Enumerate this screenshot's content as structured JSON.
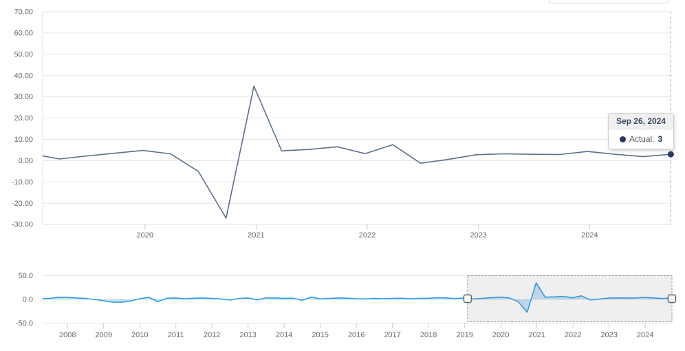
{
  "colors": {
    "background": "#ffffff",
    "grid": "#e6e6e6",
    "axis_line": "#e0e0e0",
    "tick": "#c8c8c8",
    "axis_label": "#666666",
    "main_line": "#5a6e91",
    "marker": "#26395f",
    "crosshair": "#b0b0b0",
    "nav_line": "#2f9ce8",
    "nav_fill": "rgba(47,156,232,0.28)",
    "selection_fill": "rgba(130,130,130,0.13)",
    "selection_border": "#999999",
    "handle_fill": "#f8f8f8",
    "handle_border": "#666666"
  },
  "tooltip": {
    "date": "Sep 26, 2024",
    "series_label": "Actual:",
    "value": "3",
    "marker_color": "#26395f"
  },
  "chart_data": [
    {
      "id": "main",
      "type": "line",
      "title": "",
      "x_axis": {
        "range": [
          2019.08,
          2024.74
        ],
        "ticks": [
          {
            "v": 2020,
            "label": "2020"
          },
          {
            "v": 2021,
            "label": "2021"
          },
          {
            "v": 2022,
            "label": "2022"
          },
          {
            "v": 2023,
            "label": "2023"
          },
          {
            "v": 2024,
            "label": "2024"
          }
        ]
      },
      "y_axis": {
        "range": [
          -30,
          70
        ],
        "ticks": [
          {
            "v": 70,
            "label": "70.00"
          },
          {
            "v": 60,
            "label": "60.00"
          },
          {
            "v": 50,
            "label": "50.00"
          },
          {
            "v": 40,
            "label": "40.00"
          },
          {
            "v": 30,
            "label": "30.00"
          },
          {
            "v": 20,
            "label": "20.00"
          },
          {
            "v": 10,
            "label": "10.00"
          },
          {
            "v": 0,
            "label": "0.00"
          },
          {
            "v": -10,
            "label": "-10.00"
          },
          {
            "v": -20,
            "label": "-20.00"
          },
          {
            "v": -30,
            "label": "-30.00"
          }
        ]
      },
      "series": [
        {
          "name": "Actual",
          "points": [
            [
              2018.98,
              3.2
            ],
            [
              2019.23,
              0.8
            ],
            [
              2019.48,
              2.2
            ],
            [
              2019.73,
              3.5
            ],
            [
              2019.98,
              4.8
            ],
            [
              2020.23,
              3.2
            ],
            [
              2020.48,
              -5.0
            ],
            [
              2020.73,
              -27.0
            ],
            [
              2020.98,
              35.0
            ],
            [
              2021.23,
              4.6
            ],
            [
              2021.48,
              5.3
            ],
            [
              2021.73,
              6.5
            ],
            [
              2021.98,
              3.3
            ],
            [
              2022.23,
              7.5
            ],
            [
              2022.48,
              -1.2
            ],
            [
              2022.73,
              0.6
            ],
            [
              2022.98,
              2.8
            ],
            [
              2023.23,
              3.2
            ],
            [
              2023.48,
              3.0
            ],
            [
              2023.73,
              2.9
            ],
            [
              2023.98,
              4.3
            ],
            [
              2024.23,
              3.0
            ],
            [
              2024.48,
              1.9
            ],
            [
              2024.73,
              3.0
            ]
          ]
        }
      ],
      "hovered_point": {
        "x": 2024.73,
        "y": 3.0,
        "date": "Sep 26, 2024"
      }
    },
    {
      "id": "navigator",
      "type": "area",
      "title": "",
      "x_axis": {
        "range": [
          2007.31,
          2024.74
        ],
        "ticks": [
          {
            "v": 2008,
            "label": "2008"
          },
          {
            "v": 2009,
            "label": "2009"
          },
          {
            "v": 2010,
            "label": "2010"
          },
          {
            "v": 2011,
            "label": "2011"
          },
          {
            "v": 2012,
            "label": "2012"
          },
          {
            "v": 2013,
            "label": "2013"
          },
          {
            "v": 2014,
            "label": "2014"
          },
          {
            "v": 2015,
            "label": "2015"
          },
          {
            "v": 2016,
            "label": "2016"
          },
          {
            "v": 2017,
            "label": "2017"
          },
          {
            "v": 2018,
            "label": "2018"
          },
          {
            "v": 2019,
            "label": "2019"
          },
          {
            "v": 2020,
            "label": "2020"
          },
          {
            "v": 2021,
            "label": "2021"
          },
          {
            "v": 2022,
            "label": "2022"
          },
          {
            "v": 2023,
            "label": "2023"
          },
          {
            "v": 2024,
            "label": "2024"
          }
        ]
      },
      "y_axis": {
        "range": [
          -50,
          50
        ],
        "ticks": [
          {
            "v": 50,
            "label": "50.0"
          },
          {
            "v": 0,
            "label": "0.0"
          },
          {
            "v": -50,
            "label": "-50.0"
          }
        ]
      },
      "series": [
        {
          "name": "Actual",
          "points": [
            [
              2007.25,
              1.5
            ],
            [
              2007.5,
              2.0
            ],
            [
              2007.75,
              4.5
            ],
            [
              2008.0,
              4.5
            ],
            [
              2008.25,
              3.0
            ],
            [
              2008.5,
              2.0
            ],
            [
              2008.75,
              0.0
            ],
            [
              2009.0,
              -3.0
            ],
            [
              2009.25,
              -6.0
            ],
            [
              2009.5,
              -6.0
            ],
            [
              2009.75,
              -3.5
            ],
            [
              2010.0,
              1.5
            ],
            [
              2010.25,
              4.5
            ],
            [
              2010.5,
              -5.0
            ],
            [
              2010.75,
              2.5
            ],
            [
              2011.0,
              3.0
            ],
            [
              2011.25,
              1.5
            ],
            [
              2011.5,
              2.5
            ],
            [
              2011.75,
              3.0
            ],
            [
              2012.0,
              2.0
            ],
            [
              2012.25,
              1.0
            ],
            [
              2012.5,
              -1.5
            ],
            [
              2012.75,
              2.0
            ],
            [
              2013.0,
              3.0
            ],
            [
              2013.25,
              -1.0
            ],
            [
              2013.5,
              3.0
            ],
            [
              2013.75,
              3.0
            ],
            [
              2014.0,
              2.0
            ],
            [
              2014.25,
              2.5
            ],
            [
              2014.5,
              -2.0
            ],
            [
              2014.75,
              5.0
            ],
            [
              2015.0,
              1.0
            ],
            [
              2015.25,
              2.0
            ],
            [
              2015.5,
              3.0
            ],
            [
              2015.75,
              2.5
            ],
            [
              2016.0,
              1.5
            ],
            [
              2016.25,
              1.0
            ],
            [
              2016.5,
              2.0
            ],
            [
              2016.75,
              1.5
            ],
            [
              2017.0,
              2.0
            ],
            [
              2017.25,
              2.5
            ],
            [
              2017.5,
              1.5
            ],
            [
              2017.75,
              2.0
            ],
            [
              2018.0,
              2.5
            ],
            [
              2018.25,
              3.5
            ],
            [
              2018.5,
              3.0
            ],
            [
              2018.75,
              1.5
            ],
            [
              2018.98,
              3.2
            ],
            [
              2019.23,
              0.8
            ],
            [
              2019.48,
              2.2
            ],
            [
              2019.73,
              3.5
            ],
            [
              2019.98,
              4.8
            ],
            [
              2020.23,
              3.2
            ],
            [
              2020.48,
              -5.0
            ],
            [
              2020.73,
              -27.0
            ],
            [
              2020.98,
              35.0
            ],
            [
              2021.23,
              4.6
            ],
            [
              2021.48,
              5.3
            ],
            [
              2021.73,
              6.5
            ],
            [
              2021.98,
              3.3
            ],
            [
              2022.23,
              7.5
            ],
            [
              2022.48,
              -1.2
            ],
            [
              2022.73,
              0.6
            ],
            [
              2022.98,
              2.8
            ],
            [
              2023.23,
              3.2
            ],
            [
              2023.48,
              3.0
            ],
            [
              2023.73,
              2.9
            ],
            [
              2023.98,
              4.3
            ],
            [
              2024.23,
              3.0
            ],
            [
              2024.48,
              1.9
            ],
            [
              2024.73,
              3.0
            ]
          ]
        }
      ],
      "selection": {
        "from": 2019.08,
        "to": 2024.74
      }
    }
  ]
}
